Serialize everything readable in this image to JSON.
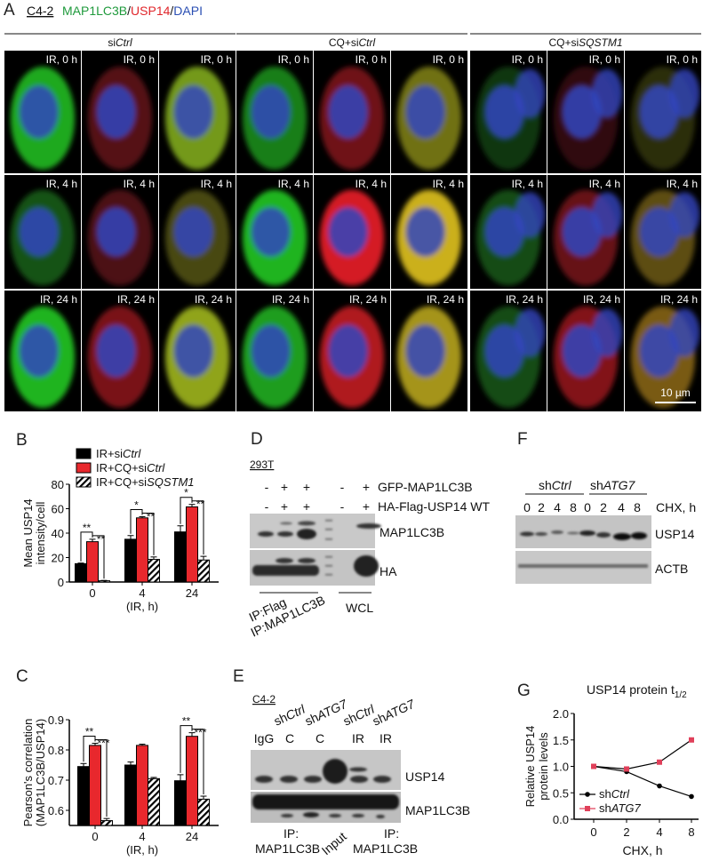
{
  "panel_a": {
    "letter": "A",
    "cell_line": "C4-2",
    "stain": {
      "green": "MAP1LC3B",
      "sep1": "/",
      "red": "USP14",
      "sep2": "/",
      "blue": "DAPI"
    },
    "stain_colors": {
      "green": "#1f9a3c",
      "red": "#e0262b",
      "blue": "#2b4fb3"
    },
    "groups": [
      {
        "prefix": "si",
        "italic": "Ctrl"
      },
      {
        "prefix": "CQ+si",
        "italic": "Ctrl"
      },
      {
        "prefix": "CQ+si",
        "italic": "SQSTM1"
      }
    ],
    "row_labels": [
      "IR, 0 h",
      "IR, 4 h",
      "IR, 24 h"
    ],
    "scale_bar": "10 µm"
  },
  "panel_d": {
    "letter": "D",
    "cell_line": "293T",
    "row1_label": "GFP-MAP1LC3B",
    "row2_label": "HA-Flag-USP14 WT",
    "row1_signs": [
      "-",
      "+",
      "+",
      "-",
      "+"
    ],
    "row2_signs": [
      "-",
      "+",
      "+",
      "-",
      "+"
    ],
    "blot1": "MAP1LC3B",
    "blot2": "HA",
    "ip1": "IP:Flag",
    "ip2": "IP:MAP1LC3B",
    "wcl": "WCL"
  },
  "panel_e": {
    "letter": "E",
    "cell_line": "C4-2",
    "top_labels": [
      {
        "prefix": "sh",
        "name": "Ctrl"
      },
      {
        "prefix": "sh",
        "name": "ATG7"
      },
      {
        "prefix": "sh",
        "name": "Ctrl"
      },
      {
        "prefix": "sh",
        "name": "ATG7"
      }
    ],
    "lanes": [
      "IgG",
      "C",
      "C",
      "IR",
      "IR"
    ],
    "blot1": "USP14",
    "blot2": "MAP1LC3B",
    "ip_left_1": "IP:",
    "ip_left_2": "MAP1LC3B",
    "input": "Input",
    "ip_right_1": "IP:",
    "ip_right_2": "MAP1LC3B"
  },
  "panel_f": {
    "letter": "F",
    "group1": {
      "prefix": "sh",
      "italic": "Ctrl"
    },
    "group2": {
      "prefix": "sh",
      "italic": "ATG7"
    },
    "times": [
      "0",
      "2",
      "4",
      "8",
      "0",
      "2",
      "4",
      "8"
    ],
    "time_label": "CHX, h",
    "blot1": "USP14",
    "blot2": "ACTB"
  },
  "chart_data": [
    {
      "panel": "B",
      "type": "bar",
      "ylabel_1": "Mean USP14",
      "ylabel_2": "intensity/cell",
      "xlabel": "(IR, h)",
      "categories": [
        "0",
        "4",
        "24"
      ],
      "ylim": [
        0,
        80
      ],
      "yticks": [
        "0",
        "20",
        "40",
        "60",
        "80"
      ],
      "legend_position": "top",
      "series": [
        {
          "name": "IR+siCtrl",
          "name_prefix": "IR+si",
          "name_italic": "Ctrl",
          "color": "#000000",
          "values": [
            15,
            35,
            41
          ],
          "errors": [
            0.5,
            3,
            5
          ]
        },
        {
          "name": "IR+CQ+siCtrl",
          "name_prefix": "IR+CQ+si",
          "name_italic": "Ctrl",
          "color": "#e8282d",
          "values": [
            33,
            52.5,
            61.5
          ],
          "errors": [
            2,
            1,
            2
          ]
        },
        {
          "name": "IR+CQ+siSQSTM1",
          "name_prefix": "IR+CQ+si",
          "name_italic": "SQSTM1",
          "color": "hatched",
          "values": [
            1,
            18.5,
            18
          ],
          "errors": [
            0.3,
            2,
            3
          ]
        }
      ],
      "significance": [
        [
          "**",
          "**"
        ],
        [
          "*",
          "**"
        ],
        [
          "*",
          "**"
        ]
      ]
    },
    {
      "panel": "C",
      "type": "bar",
      "ylabel_1": "Pearson's correlation",
      "ylabel_2": "(MAP1LC3B/USP14)",
      "xlabel": "(IR, h)",
      "categories": [
        "0",
        "4",
        "24"
      ],
      "ylim": [
        0.55,
        0.9
      ],
      "yticks": [
        "0.6",
        "0.7",
        "0.8",
        "0.9"
      ],
      "series": [
        {
          "color": "#000000",
          "values": [
            0.745,
            0.75,
            0.698
          ],
          "errors": [
            0.01,
            0.01,
            0.02
          ]
        },
        {
          "color": "#e8282d",
          "values": [
            0.815,
            0.815,
            0.845
          ],
          "errors": [
            0.007,
            0.004,
            0.012
          ]
        },
        {
          "color": "hatched",
          "values": [
            0.566,
            0.705,
            0.637
          ],
          "errors": [
            0.007,
            0.004,
            0.01
          ]
        }
      ],
      "significance": [
        [
          "**",
          "***"
        ],
        null,
        [
          "**",
          "***"
        ]
      ]
    },
    {
      "panel": "G",
      "type": "line",
      "title": "USP14 protein t",
      "title_sub": "1/2",
      "ylabel_1": "Relative USP14",
      "ylabel_2": "protein levels",
      "xlabel": "CHX, h",
      "x": [
        "0",
        "2",
        "4",
        "8"
      ],
      "ylim": [
        0,
        2
      ],
      "yticks": [
        "0.0",
        "0.5",
        "1.0",
        "1.5",
        "2.0"
      ],
      "legend_position": "bottom-left",
      "series": [
        {
          "name": "shCtrl",
          "name_prefix": "sh",
          "name_italic": "Ctrl",
          "color": "#000000",
          "marker": "circle",
          "values": [
            1.0,
            0.9,
            0.63,
            0.43
          ]
        },
        {
          "name": "shATG7",
          "name_prefix": "sh",
          "name_italic": "ATG7",
          "color": "#e0405a",
          "marker": "square",
          "values": [
            1.0,
            0.95,
            1.08,
            1.5
          ]
        }
      ]
    }
  ]
}
